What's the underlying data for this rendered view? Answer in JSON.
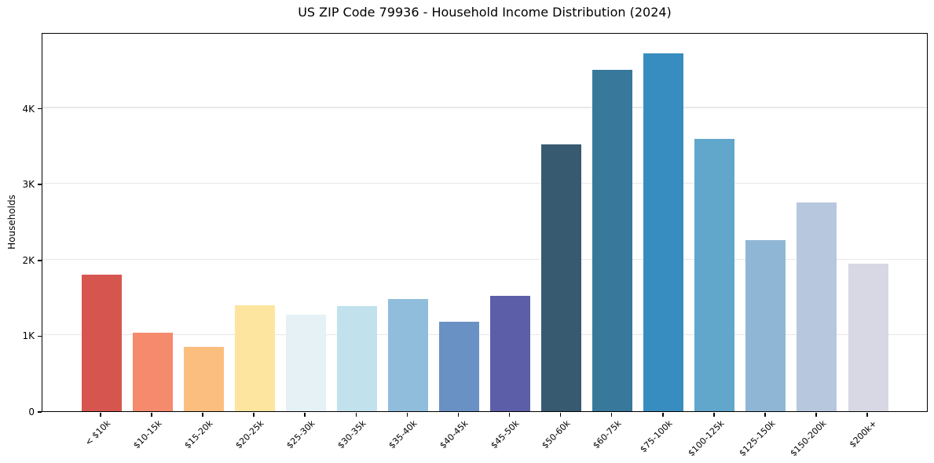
{
  "figure": {
    "title": "US ZIP Code 79936 - Household Income Distribution (2024)"
  },
  "chart_data": {
    "type": "bar",
    "title": "US ZIP Code 79936 - Household Income Distribution (2024)",
    "xlabel": "",
    "ylabel": "Households",
    "ylim": [
      0,
      5000
    ],
    "grid": "horizontal",
    "legend": "none",
    "background": "#ffffff",
    "yticks": [
      {
        "value": 0,
        "label": "0"
      },
      {
        "value": 1000,
        "label": "1K"
      },
      {
        "value": 2000,
        "label": "2K"
      },
      {
        "value": 3000,
        "label": "3K"
      },
      {
        "value": 4000,
        "label": "4K"
      }
    ],
    "categories": [
      "< $10k",
      "$10-15k",
      "$15-20k",
      "$20-25k",
      "$25-30k",
      "$30-35k",
      "$35-40k",
      "$40-45k",
      "$45-50k",
      "$50-60k",
      "$60-75k",
      "$75-100k",
      "$100-125k",
      "$125-150k",
      "$150-200k",
      "$200k+"
    ],
    "values": [
      1800,
      1040,
      850,
      1400,
      1270,
      1390,
      1480,
      1180,
      1520,
      3520,
      4500,
      4720,
      3590,
      2260,
      2750,
      1950
    ],
    "bar_colors": [
      "#d6564f",
      "#f58a6c",
      "#fcbe7e",
      "#fde5a0",
      "#e6f1f5",
      "#c1e1ec",
      "#90bddc",
      "#6a91c3",
      "#5c5fa7",
      "#375a70",
      "#38799b",
      "#378dbf",
      "#61a7cb",
      "#90b6d5",
      "#b7c8de",
      "#d7d8e3"
    ]
  },
  "style": {
    "spine_color": "#000000",
    "grid_color": "#e8e8e8",
    "text_color": "#000000"
  }
}
